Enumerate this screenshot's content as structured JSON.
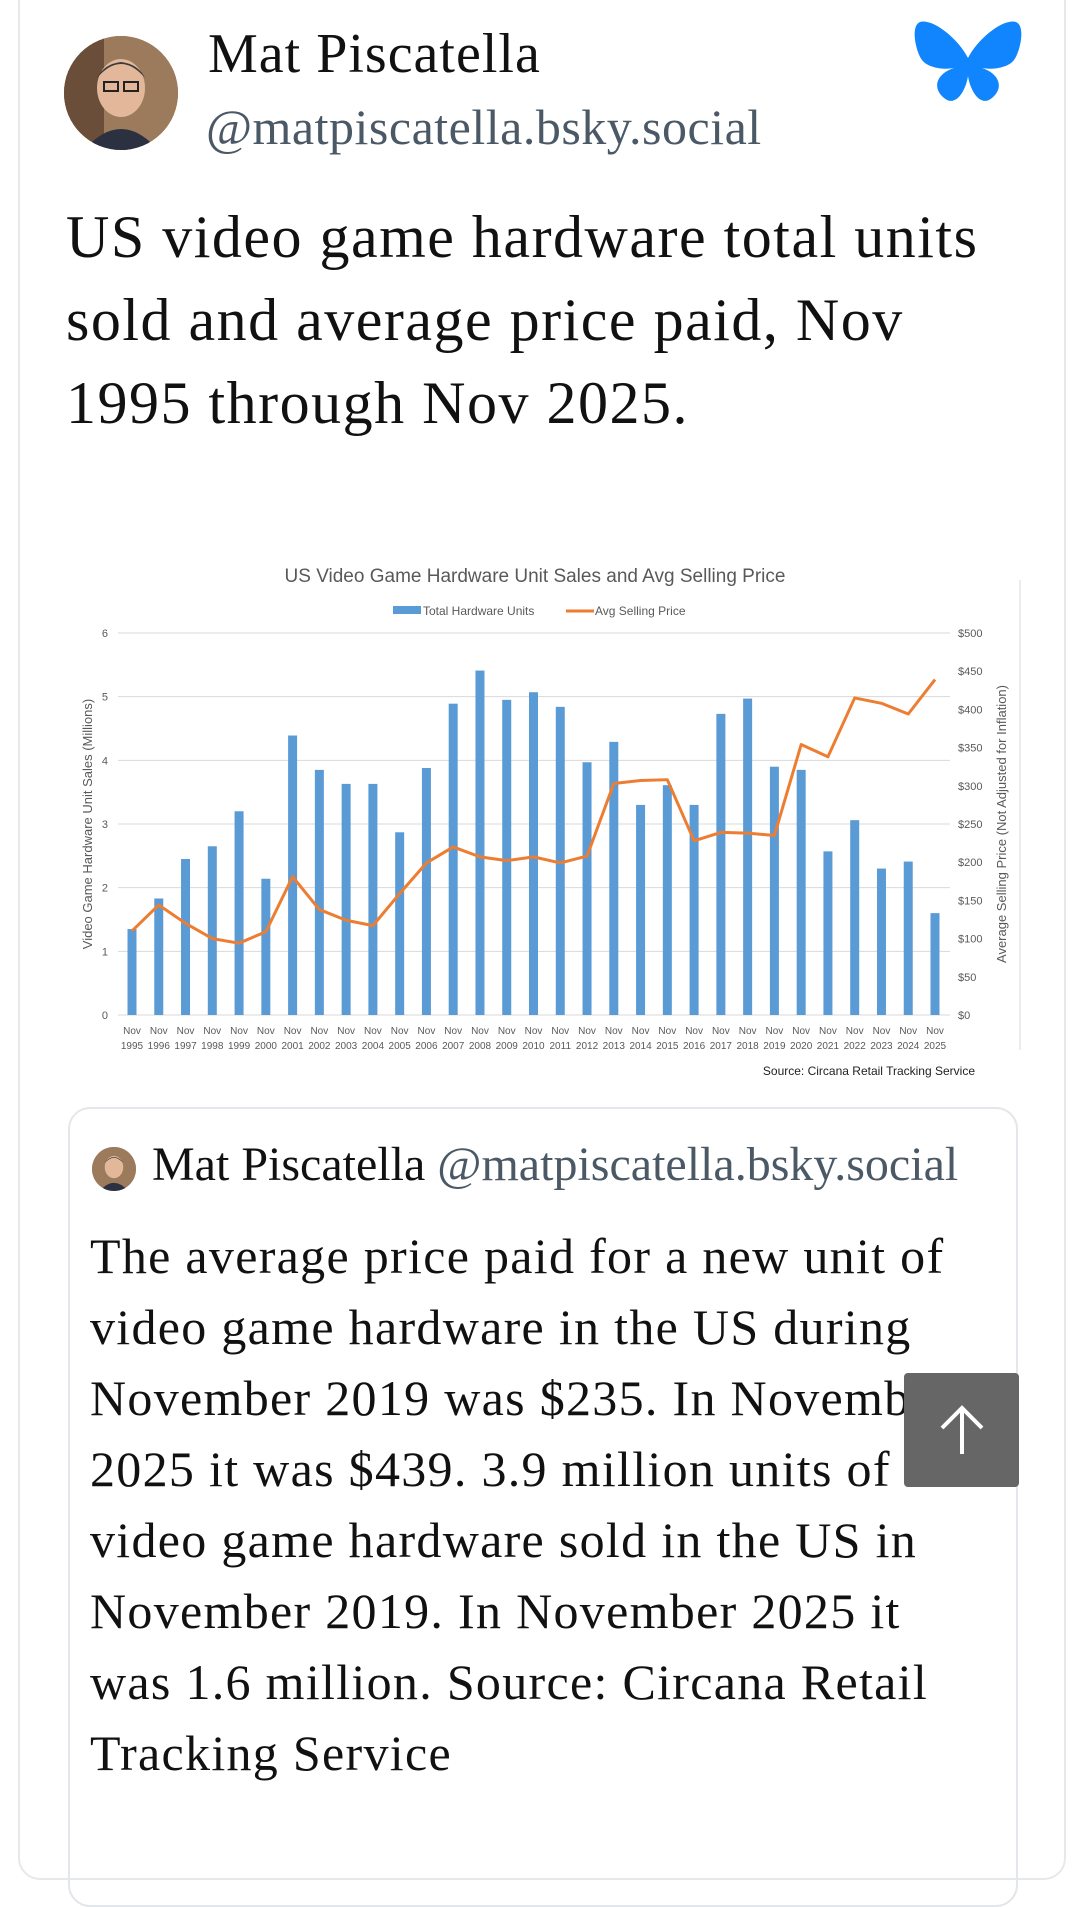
{
  "author": {
    "name": "Mat Piscatella",
    "handle": "@matpiscatella.bsky.social"
  },
  "post_text": "US video game hardware total units sold and average price paid, Nov 1995 through Nov 2025.",
  "quote": {
    "name": "Mat Piscatella",
    "handle": "@matpiscatella.bsky.social",
    "text": "The average price paid for a new unit of video game hardware in the US during November 2019 was $235. In November 2025 it was $439. 3.9 million units of video game hardware sold in the US in November 2019. In November 2025 it was 1.6 million. Source: Circana Retail Tracking Service"
  },
  "colors": {
    "bars": "#5b9bd5",
    "line": "#ed7d31",
    "brand": "#1185fe"
  },
  "chart_data": {
    "type": "bar",
    "title": "US Video Game Hardware Unit Sales and Avg Selling Price",
    "source": "Source: Circana Retail Tracking Service",
    "legend": [
      "Total Hardware Units",
      "Avg Selling Price"
    ],
    "legend_position": "top",
    "ylabel": "Video Game Hardware Unit Sales (Millions)",
    "y2label": "Average Selling Price (Not Adjusted for Inflation)",
    "ylim": [
      0,
      6
    ],
    "y2lim": [
      0,
      500
    ],
    "yticks": [
      "0",
      "1",
      "2",
      "3",
      "4",
      "5",
      "6"
    ],
    "y2ticks": [
      "$0",
      "$50",
      "$100",
      "$150",
      "$200",
      "$250",
      "$300",
      "$350",
      "$400",
      "$450",
      "$500"
    ],
    "categories": [
      "1995",
      "1996",
      "1997",
      "1998",
      "1999",
      "2000",
      "2001",
      "2002",
      "2003",
      "2004",
      "2005",
      "2006",
      "2007",
      "2008",
      "2009",
      "2010",
      "2011",
      "2012",
      "2013",
      "2014",
      "2015",
      "2016",
      "2017",
      "2018",
      "2019",
      "2020",
      "2021",
      "2022",
      "2023",
      "2024",
      "2025"
    ],
    "category_prefix": "Nov",
    "series": [
      {
        "name": "Total Hardware Units",
        "type": "bar",
        "axis": "left",
        "values": [
          1.35,
          1.83,
          2.45,
          2.65,
          3.2,
          2.14,
          4.39,
          3.85,
          3.63,
          3.63,
          2.87,
          3.88,
          4.89,
          5.41,
          4.95,
          5.07,
          4.84,
          3.97,
          4.29,
          3.3,
          3.61,
          3.3,
          4.73,
          4.97,
          3.9,
          3.85,
          2.57,
          3.06,
          2.3,
          2.41,
          1.6
        ]
      },
      {
        "name": "Avg Selling Price",
        "type": "line",
        "axis": "right",
        "values": [
          110,
          144,
          120,
          100,
          94,
          109,
          181,
          138,
          124,
          117,
          159,
          199,
          220,
          207,
          202,
          207,
          199,
          208,
          303,
          307,
          308,
          228,
          239,
          238,
          235,
          354,
          338,
          415,
          408,
          394,
          439
        ]
      }
    ]
  }
}
